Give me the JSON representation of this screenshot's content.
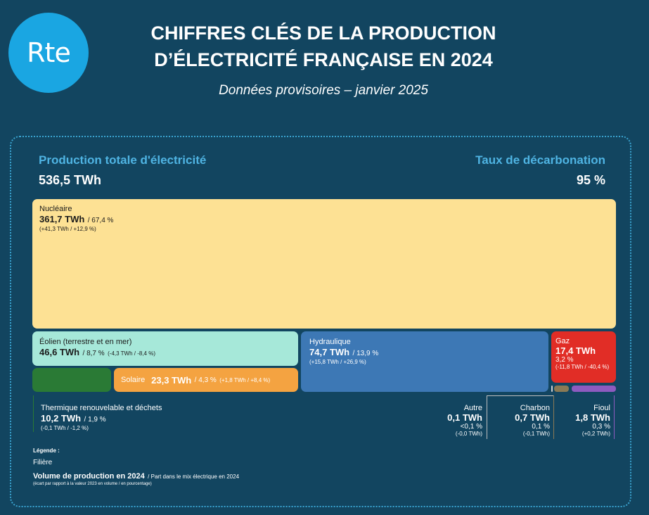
{
  "header": {
    "logo_text": "Rte",
    "title_line1": "CHIFFRES CLÉS DE LA PRODUCTION",
    "title_line2": "D’ÉLECTRICITÉ FRANÇAISE EN 2024",
    "subtitle": "Données provisoires – janvier 2025"
  },
  "kpis": {
    "total_label": "Production totale d'électricité",
    "total_value": "536,5 TWh",
    "decarb_label": "Taux de décarbonation",
    "decarb_value": "95 %"
  },
  "chart_data": {
    "type": "treemap",
    "unit": "TWh",
    "total": 536.5,
    "items": [
      {
        "name": "Nucléaire",
        "value": 361.7,
        "value_text": "361,7 TWh",
        "share_text": "/ 67,4 %",
        "delta_text": "(+41,3 TWh / +12,9 %)",
        "color": "#fde194"
      },
      {
        "name": "Éolien (terrestre et en mer)",
        "value": 46.6,
        "value_text": "46,6 TWh",
        "share_text": "/ 8,7 %",
        "delta_text": "(-4,3 TWh / -8,4 %)",
        "color": "#a6e8d9"
      },
      {
        "name": "Hydraulique",
        "value": 74.7,
        "value_text": "74,7 TWh",
        "share_text": "/ 13,9 %",
        "delta_text": "(+15,8 TWh / +26,9 %)",
        "color": "#3d78b5"
      },
      {
        "name": "Gaz",
        "value": 17.4,
        "value_text": "17,4 TWh",
        "share_text": "3,2 %",
        "delta_text": "(-11,8 TWh / -40,4 %)",
        "color": "#e12d26"
      },
      {
        "name": "Solaire",
        "value": 23.3,
        "value_text": "23,3 TWh",
        "share_text": "/ 4,3 %",
        "delta_text": "(+1,8 TWh / +8,4 %)",
        "color": "#f4a341"
      },
      {
        "name": "Thermique renouvelable et déchets",
        "value": 10.2,
        "value_text": "10,2 TWh",
        "share_text": "/ 1,9 %",
        "delta_text": "(-0,1 TWh / -1,2 %)",
        "color": "#2a7a35"
      },
      {
        "name": "Autre",
        "value": 0.1,
        "value_text": "0,1 TWh",
        "share_text": "<0,1 %",
        "delta_text": "(-0,0 TWh)",
        "color": "#cfcfcf"
      },
      {
        "name": "Charbon",
        "value": 0.7,
        "value_text": "0,7 TWh",
        "share_text": "0,1 %",
        "delta_text": "(-0,1 TWh)",
        "color": "#8a7a55"
      },
      {
        "name": "Fioul",
        "value": 1.8,
        "value_text": "1,8 TWh",
        "share_text": "0,3 %",
        "delta_text": "(+0,2 TWh)",
        "color": "#8d5bbf"
      }
    ]
  },
  "legend": {
    "title": "Légende :",
    "filiere": "Filière",
    "volume": "Volume de production en 2024",
    "part": "/ Part dans le mix électrique en 2024",
    "ecart": "(écart par rapport à la valeur 2023 en volume / en pourcentage)"
  }
}
